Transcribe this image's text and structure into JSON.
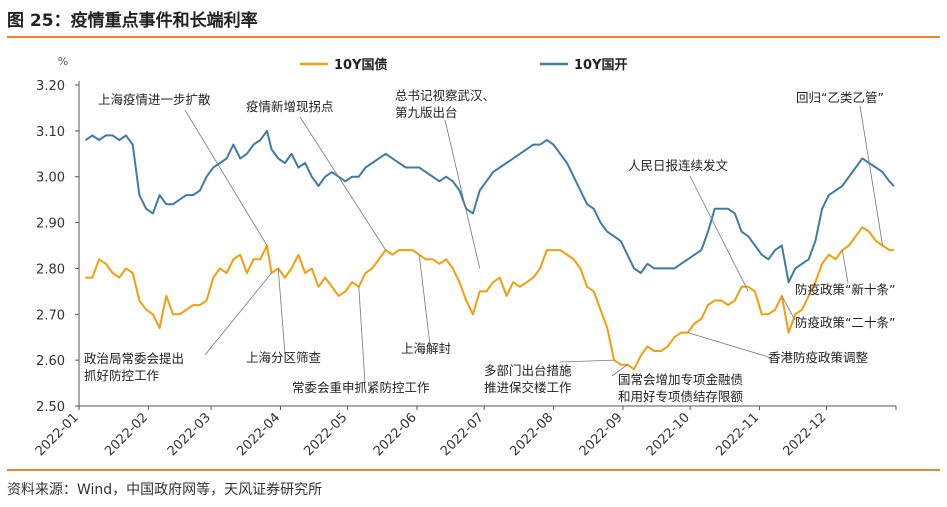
{
  "header": {
    "title": "图 25：疫情重点事件和长端利率"
  },
  "footer": {
    "source": "资料来源：Wind，中国政府网等，天风证券研究所"
  },
  "colors": {
    "accent": "#E8882A",
    "series_10y_gov": "#F59E0B",
    "series_10y_cdb": "#3E7CA6"
  },
  "chart_data": {
    "type": "line",
    "title": "",
    "ylabel": "%",
    "ylim": [
      2.5,
      3.2
    ],
    "yticks": [
      "2.50",
      "2.60",
      "2.70",
      "2.80",
      "2.90",
      "3.00",
      "3.10",
      "3.20"
    ],
    "xlim": [
      "2022-01-01",
      "2023-01-01"
    ],
    "xticks": [
      "2022-01",
      "2022-02",
      "2022-03",
      "2022-04",
      "2022-05",
      "2022-06",
      "2022-07",
      "2022-08",
      "2022-09",
      "2022-10",
      "2022-11",
      "2022-12"
    ],
    "legend_position": "top",
    "grid": false,
    "series": [
      {
        "name": "10Y国债",
        "color": "#F59E0B",
        "points": [
          [
            "2022-01-04",
            2.78
          ],
          [
            "2022-01-07",
            2.78
          ],
          [
            "2022-01-10",
            2.82
          ],
          [
            "2022-01-13",
            2.81
          ],
          [
            "2022-01-16",
            2.79
          ],
          [
            "2022-01-19",
            2.78
          ],
          [
            "2022-01-22",
            2.8
          ],
          [
            "2022-01-25",
            2.79
          ],
          [
            "2022-01-28",
            2.73
          ],
          [
            "2022-01-31",
            2.71
          ],
          [
            "2022-02-03",
            2.7
          ],
          [
            "2022-02-06",
            2.67
          ],
          [
            "2022-02-09",
            2.74
          ],
          [
            "2022-02-12",
            2.7
          ],
          [
            "2022-02-15",
            2.7
          ],
          [
            "2022-02-18",
            2.71
          ],
          [
            "2022-02-21",
            2.72
          ],
          [
            "2022-02-24",
            2.72
          ],
          [
            "2022-02-27",
            2.73
          ],
          [
            "2022-03-02",
            2.78
          ],
          [
            "2022-03-05",
            2.8
          ],
          [
            "2022-03-08",
            2.79
          ],
          [
            "2022-03-11",
            2.82
          ],
          [
            "2022-03-14",
            2.83
          ],
          [
            "2022-03-17",
            2.79
          ],
          [
            "2022-03-20",
            2.82
          ],
          [
            "2022-03-23",
            2.82
          ],
          [
            "2022-03-26",
            2.85
          ],
          [
            "2022-03-28",
            2.79
          ],
          [
            "2022-03-31",
            2.8
          ],
          [
            "2022-04-03",
            2.78
          ],
          [
            "2022-04-06",
            2.8
          ],
          [
            "2022-04-09",
            2.83
          ],
          [
            "2022-04-12",
            2.79
          ],
          [
            "2022-04-15",
            2.8
          ],
          [
            "2022-04-18",
            2.76
          ],
          [
            "2022-04-21",
            2.78
          ],
          [
            "2022-04-24",
            2.76
          ],
          [
            "2022-04-27",
            2.74
          ],
          [
            "2022-04-30",
            2.75
          ],
          [
            "2022-05-03",
            2.77
          ],
          [
            "2022-05-06",
            2.76
          ],
          [
            "2022-05-09",
            2.79
          ],
          [
            "2022-05-12",
            2.8
          ],
          [
            "2022-05-15",
            2.82
          ],
          [
            "2022-05-18",
            2.84
          ],
          [
            "2022-05-21",
            2.83
          ],
          [
            "2022-05-24",
            2.84
          ],
          [
            "2022-05-27",
            2.84
          ],
          [
            "2022-05-30",
            2.84
          ],
          [
            "2022-06-02",
            2.83
          ],
          [
            "2022-06-05",
            2.82
          ],
          [
            "2022-06-08",
            2.82
          ],
          [
            "2022-06-11",
            2.81
          ],
          [
            "2022-06-14",
            2.82
          ],
          [
            "2022-06-17",
            2.8
          ],
          [
            "2022-06-20",
            2.77
          ],
          [
            "2022-06-23",
            2.73
          ],
          [
            "2022-06-26",
            2.7
          ],
          [
            "2022-06-29",
            2.75
          ],
          [
            "2022-07-02",
            2.75
          ],
          [
            "2022-07-05",
            2.77
          ],
          [
            "2022-07-08",
            2.78
          ],
          [
            "2022-07-11",
            2.74
          ],
          [
            "2022-07-14",
            2.77
          ],
          [
            "2022-07-17",
            2.76
          ],
          [
            "2022-07-20",
            2.77
          ],
          [
            "2022-07-23",
            2.78
          ],
          [
            "2022-07-26",
            2.8
          ],
          [
            "2022-07-29",
            2.84
          ],
          [
            "2022-08-01",
            2.84
          ],
          [
            "2022-08-04",
            2.84
          ],
          [
            "2022-08-07",
            2.83
          ],
          [
            "2022-08-10",
            2.82
          ],
          [
            "2022-08-13",
            2.8
          ],
          [
            "2022-08-16",
            2.76
          ],
          [
            "2022-08-19",
            2.75
          ],
          [
            "2022-08-22",
            2.71
          ],
          [
            "2022-08-25",
            2.67
          ],
          [
            "2022-08-28",
            2.6
          ],
          [
            "2022-08-31",
            2.59
          ],
          [
            "2022-09-03",
            2.59
          ],
          [
            "2022-09-06",
            2.58
          ],
          [
            "2022-09-09",
            2.61
          ],
          [
            "2022-09-12",
            2.63
          ],
          [
            "2022-09-15",
            2.62
          ],
          [
            "2022-09-18",
            2.62
          ],
          [
            "2022-09-21",
            2.63
          ],
          [
            "2022-09-24",
            2.65
          ],
          [
            "2022-09-27",
            2.66
          ],
          [
            "2022-09-30",
            2.66
          ],
          [
            "2022-10-03",
            2.68
          ],
          [
            "2022-10-06",
            2.69
          ],
          [
            "2022-10-09",
            2.72
          ],
          [
            "2022-10-12",
            2.73
          ],
          [
            "2022-10-15",
            2.73
          ],
          [
            "2022-10-18",
            2.72
          ],
          [
            "2022-10-21",
            2.73
          ],
          [
            "2022-10-24",
            2.76
          ],
          [
            "2022-10-27",
            2.76
          ],
          [
            "2022-10-30",
            2.75
          ],
          [
            "2022-11-02",
            2.7
          ],
          [
            "2022-11-05",
            2.7
          ],
          [
            "2022-11-08",
            2.71
          ],
          [
            "2022-11-11",
            2.74
          ],
          [
            "2022-11-14",
            2.66
          ],
          [
            "2022-11-17",
            2.7
          ],
          [
            "2022-11-20",
            2.71
          ],
          [
            "2022-11-23",
            2.74
          ],
          [
            "2022-11-26",
            2.77
          ],
          [
            "2022-11-29",
            2.81
          ],
          [
            "2022-12-02",
            2.83
          ],
          [
            "2022-12-05",
            2.82
          ],
          [
            "2022-12-08",
            2.84
          ],
          [
            "2022-12-11",
            2.85
          ],
          [
            "2022-12-14",
            2.87
          ],
          [
            "2022-12-17",
            2.89
          ],
          [
            "2022-12-20",
            2.88
          ],
          [
            "2022-12-23",
            2.86
          ],
          [
            "2022-12-26",
            2.85
          ],
          [
            "2022-12-29",
            2.84
          ],
          [
            "2022-12-31",
            2.84
          ]
        ]
      },
      {
        "name": "10Y国开",
        "color": "#3E7CA6",
        "points": [
          [
            "2022-01-04",
            3.08
          ],
          [
            "2022-01-07",
            3.09
          ],
          [
            "2022-01-10",
            3.08
          ],
          [
            "2022-01-13",
            3.09
          ],
          [
            "2022-01-16",
            3.09
          ],
          [
            "2022-01-19",
            3.08
          ],
          [
            "2022-01-22",
            3.09
          ],
          [
            "2022-01-25",
            3.07
          ],
          [
            "2022-01-28",
            2.96
          ],
          [
            "2022-01-31",
            2.93
          ],
          [
            "2022-02-03",
            2.92
          ],
          [
            "2022-02-06",
            2.96
          ],
          [
            "2022-02-09",
            2.94
          ],
          [
            "2022-02-12",
            2.94
          ],
          [
            "2022-02-15",
            2.95
          ],
          [
            "2022-02-18",
            2.96
          ],
          [
            "2022-02-21",
            2.96
          ],
          [
            "2022-02-24",
            2.97
          ],
          [
            "2022-02-27",
            3.0
          ],
          [
            "2022-03-02",
            3.02
          ],
          [
            "2022-03-05",
            3.03
          ],
          [
            "2022-03-08",
            3.04
          ],
          [
            "2022-03-11",
            3.07
          ],
          [
            "2022-03-14",
            3.04
          ],
          [
            "2022-03-17",
            3.05
          ],
          [
            "2022-03-20",
            3.07
          ],
          [
            "2022-03-23",
            3.08
          ],
          [
            "2022-03-26",
            3.1
          ],
          [
            "2022-03-28",
            3.06
          ],
          [
            "2022-03-31",
            3.04
          ],
          [
            "2022-04-03",
            3.03
          ],
          [
            "2022-04-06",
            3.05
          ],
          [
            "2022-04-09",
            3.02
          ],
          [
            "2022-04-12",
            3.03
          ],
          [
            "2022-04-15",
            3.0
          ],
          [
            "2022-04-18",
            2.98
          ],
          [
            "2022-04-21",
            3.0
          ],
          [
            "2022-04-24",
            3.01
          ],
          [
            "2022-04-27",
            3.0
          ],
          [
            "2022-04-30",
            2.99
          ],
          [
            "2022-05-03",
            3.0
          ],
          [
            "2022-05-06",
            3.0
          ],
          [
            "2022-05-09",
            3.02
          ],
          [
            "2022-05-12",
            3.03
          ],
          [
            "2022-05-15",
            3.04
          ],
          [
            "2022-05-18",
            3.05
          ],
          [
            "2022-05-21",
            3.04
          ],
          [
            "2022-05-24",
            3.03
          ],
          [
            "2022-05-27",
            3.02
          ],
          [
            "2022-05-30",
            3.02
          ],
          [
            "2022-06-02",
            3.02
          ],
          [
            "2022-06-05",
            3.01
          ],
          [
            "2022-06-08",
            3.0
          ],
          [
            "2022-06-11",
            2.99
          ],
          [
            "2022-06-14",
            3.0
          ],
          [
            "2022-06-17",
            2.99
          ],
          [
            "2022-06-20",
            2.97
          ],
          [
            "2022-06-23",
            2.93
          ],
          [
            "2022-06-26",
            2.92
          ],
          [
            "2022-06-29",
            2.97
          ],
          [
            "2022-07-02",
            2.99
          ],
          [
            "2022-07-05",
            3.01
          ],
          [
            "2022-07-08",
            3.02
          ],
          [
            "2022-07-11",
            3.03
          ],
          [
            "2022-07-14",
            3.04
          ],
          [
            "2022-07-17",
            3.05
          ],
          [
            "2022-07-20",
            3.06
          ],
          [
            "2022-07-23",
            3.07
          ],
          [
            "2022-07-26",
            3.07
          ],
          [
            "2022-07-29",
            3.08
          ],
          [
            "2022-08-01",
            3.07
          ],
          [
            "2022-08-04",
            3.05
          ],
          [
            "2022-08-07",
            3.03
          ],
          [
            "2022-08-10",
            3.0
          ],
          [
            "2022-08-13",
            2.97
          ],
          [
            "2022-08-16",
            2.94
          ],
          [
            "2022-08-19",
            2.93
          ],
          [
            "2022-08-22",
            2.9
          ],
          [
            "2022-08-25",
            2.88
          ],
          [
            "2022-08-28",
            2.87
          ],
          [
            "2022-08-31",
            2.86
          ],
          [
            "2022-09-03",
            2.83
          ],
          [
            "2022-09-06",
            2.8
          ],
          [
            "2022-09-09",
            2.79
          ],
          [
            "2022-09-12",
            2.81
          ],
          [
            "2022-09-15",
            2.8
          ],
          [
            "2022-09-18",
            2.8
          ],
          [
            "2022-09-21",
            2.8
          ],
          [
            "2022-09-24",
            2.8
          ],
          [
            "2022-09-27",
            2.81
          ],
          [
            "2022-09-30",
            2.82
          ],
          [
            "2022-10-03",
            2.83
          ],
          [
            "2022-10-06",
            2.84
          ],
          [
            "2022-10-09",
            2.88
          ],
          [
            "2022-10-12",
            2.93
          ],
          [
            "2022-10-15",
            2.93
          ],
          [
            "2022-10-18",
            2.93
          ],
          [
            "2022-10-21",
            2.92
          ],
          [
            "2022-10-24",
            2.88
          ],
          [
            "2022-10-27",
            2.87
          ],
          [
            "2022-10-30",
            2.85
          ],
          [
            "2022-11-02",
            2.83
          ],
          [
            "2022-11-05",
            2.82
          ],
          [
            "2022-11-08",
            2.84
          ],
          [
            "2022-11-11",
            2.85
          ],
          [
            "2022-11-14",
            2.77
          ],
          [
            "2022-11-17",
            2.8
          ],
          [
            "2022-11-20",
            2.81
          ],
          [
            "2022-11-23",
            2.82
          ],
          [
            "2022-11-26",
            2.86
          ],
          [
            "2022-11-29",
            2.93
          ],
          [
            "2022-12-02",
            2.96
          ],
          [
            "2022-12-05",
            2.97
          ],
          [
            "2022-12-08",
            2.98
          ],
          [
            "2022-12-11",
            3.0
          ],
          [
            "2022-12-14",
            3.02
          ],
          [
            "2022-12-17",
            3.04
          ],
          [
            "2022-12-20",
            3.03
          ],
          [
            "2022-12-23",
            3.02
          ],
          [
            "2022-12-26",
            3.01
          ],
          [
            "2022-12-29",
            2.99
          ],
          [
            "2022-12-31",
            2.98
          ]
        ]
      }
    ],
    "annotations": [
      {
        "lines": [
          "上海疫情进一步扩散"
        ],
        "date": "2022-03-26",
        "value": 2.85
      },
      {
        "lines": [
          "疫情新增现拐点"
        ],
        "date": "2022-05-18",
        "value": 2.84
      },
      {
        "lines": [
          "总书记视察武汉、",
          "第九版出台"
        ],
        "date": "2022-06-29",
        "value": 2.8
      },
      {
        "lines": [
          "人民日报连续发文"
        ],
        "date": "2022-10-27",
        "value": 2.75
      },
      {
        "lines": [
          "回归“乙类乙管”"
        ],
        "date": "2022-12-26",
        "value": 2.85
      },
      {
        "lines": [
          "政治局常委会提出",
          "抓好防控工作"
        ],
        "date": "2022-03-28",
        "value": 2.79
      },
      {
        "lines": [
          "上海分区筛查"
        ],
        "date": "2022-03-31",
        "value": 2.8
      },
      {
        "lines": [
          "常委会重申抓紧防控工作"
        ],
        "date": "2022-05-06",
        "value": 2.76
      },
      {
        "lines": [
          "上海解封"
        ],
        "date": "2022-06-02",
        "value": 2.83
      },
      {
        "lines": [
          "多部门出台措施",
          "推进保交楼工作"
        ],
        "date": "2022-08-28",
        "value": 2.6
      },
      {
        "lines": [
          "国常会增加专项金融债",
          "和用好专项债结存限额"
        ],
        "date": "2022-09-03",
        "value": 2.59
      },
      {
        "lines": [
          "香港防疫政策调整"
        ],
        "date": "2022-09-30",
        "value": 2.66
      },
      {
        "lines": [
          "防疫政策“新十条”"
        ],
        "date": "2022-12-08",
        "value": 2.84
      },
      {
        "lines": [
          "防疫政策“二十条”"
        ],
        "date": "2022-11-11",
        "value": 2.74
      }
    ]
  }
}
